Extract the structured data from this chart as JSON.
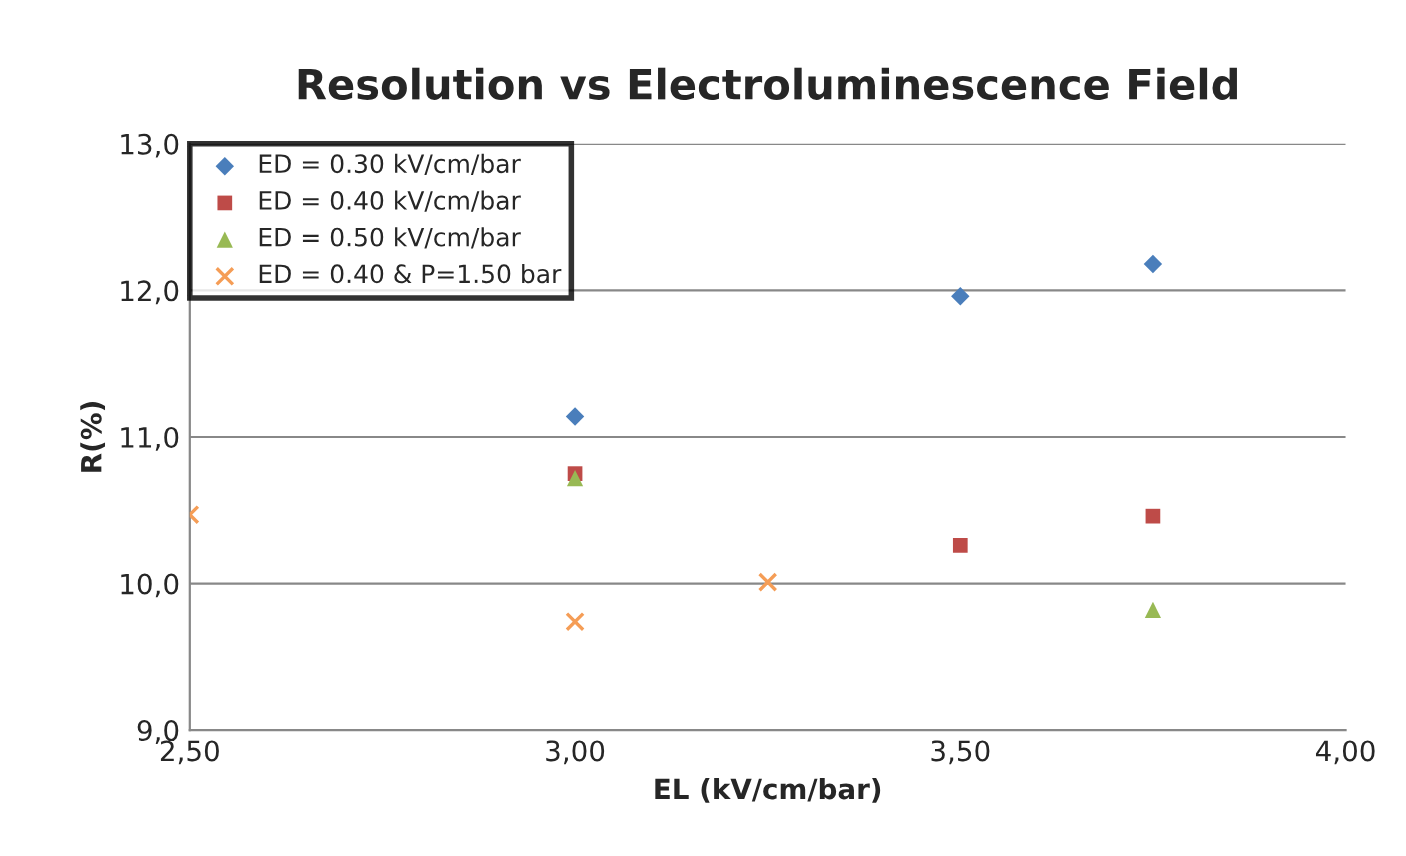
{
  "chart_data": {
    "type": "scatter",
    "title": "Resolution vs Electroluminescence Field",
    "xlabel": "EL (kV/cm/bar)",
    "ylabel": "R(%)",
    "xlim": [
      2.5,
      4.0
    ],
    "xticks": [
      {
        "value": 2.5,
        "label": "2,50"
      },
      {
        "value": 3.0,
        "label": "3,00"
      },
      {
        "value": 3.5,
        "label": "3,50"
      },
      {
        "value": 4.0,
        "label": "4,00"
      }
    ],
    "ylim": [
      9.0,
      13.0
    ],
    "yticks": [
      {
        "value": 9.0,
        "label": "9,0"
      },
      {
        "value": 10.0,
        "label": "10,0"
      },
      {
        "value": 11.0,
        "label": "11,0"
      },
      {
        "value": 12.0,
        "label": "12,0"
      },
      {
        "value": 13.0,
        "label": "13,0"
      }
    ],
    "grid": "y",
    "legend": "top left",
    "series": [
      {
        "name": "ED = 0.30 kV/cm/bar",
        "color": "#4a7ebb",
        "marker": "diamond",
        "x": [
          3.0,
          3.5,
          3.75
        ],
        "values": [
          11.14,
          11.96,
          12.18
        ]
      },
      {
        "name": "ED = 0.40 kV/cm/bar",
        "color": "#be4b48",
        "marker": "square",
        "x": [
          3.0,
          3.5,
          3.75
        ],
        "values": [
          10.75,
          10.26,
          10.46
        ]
      },
      {
        "name": "ED = 0.50 kV/cm/bar",
        "color": "#98b954",
        "marker": "triangle",
        "x": [
          3.0,
          3.75
        ],
        "values": [
          10.72,
          9.82
        ]
      },
      {
        "name": "ED = 0.40 & P=1.50 bar",
        "color": "#f59d56",
        "marker": "cross",
        "x": [
          2.5,
          3.0,
          3.25
        ],
        "values": [
          10.47,
          9.74,
          10.01
        ]
      }
    ]
  }
}
